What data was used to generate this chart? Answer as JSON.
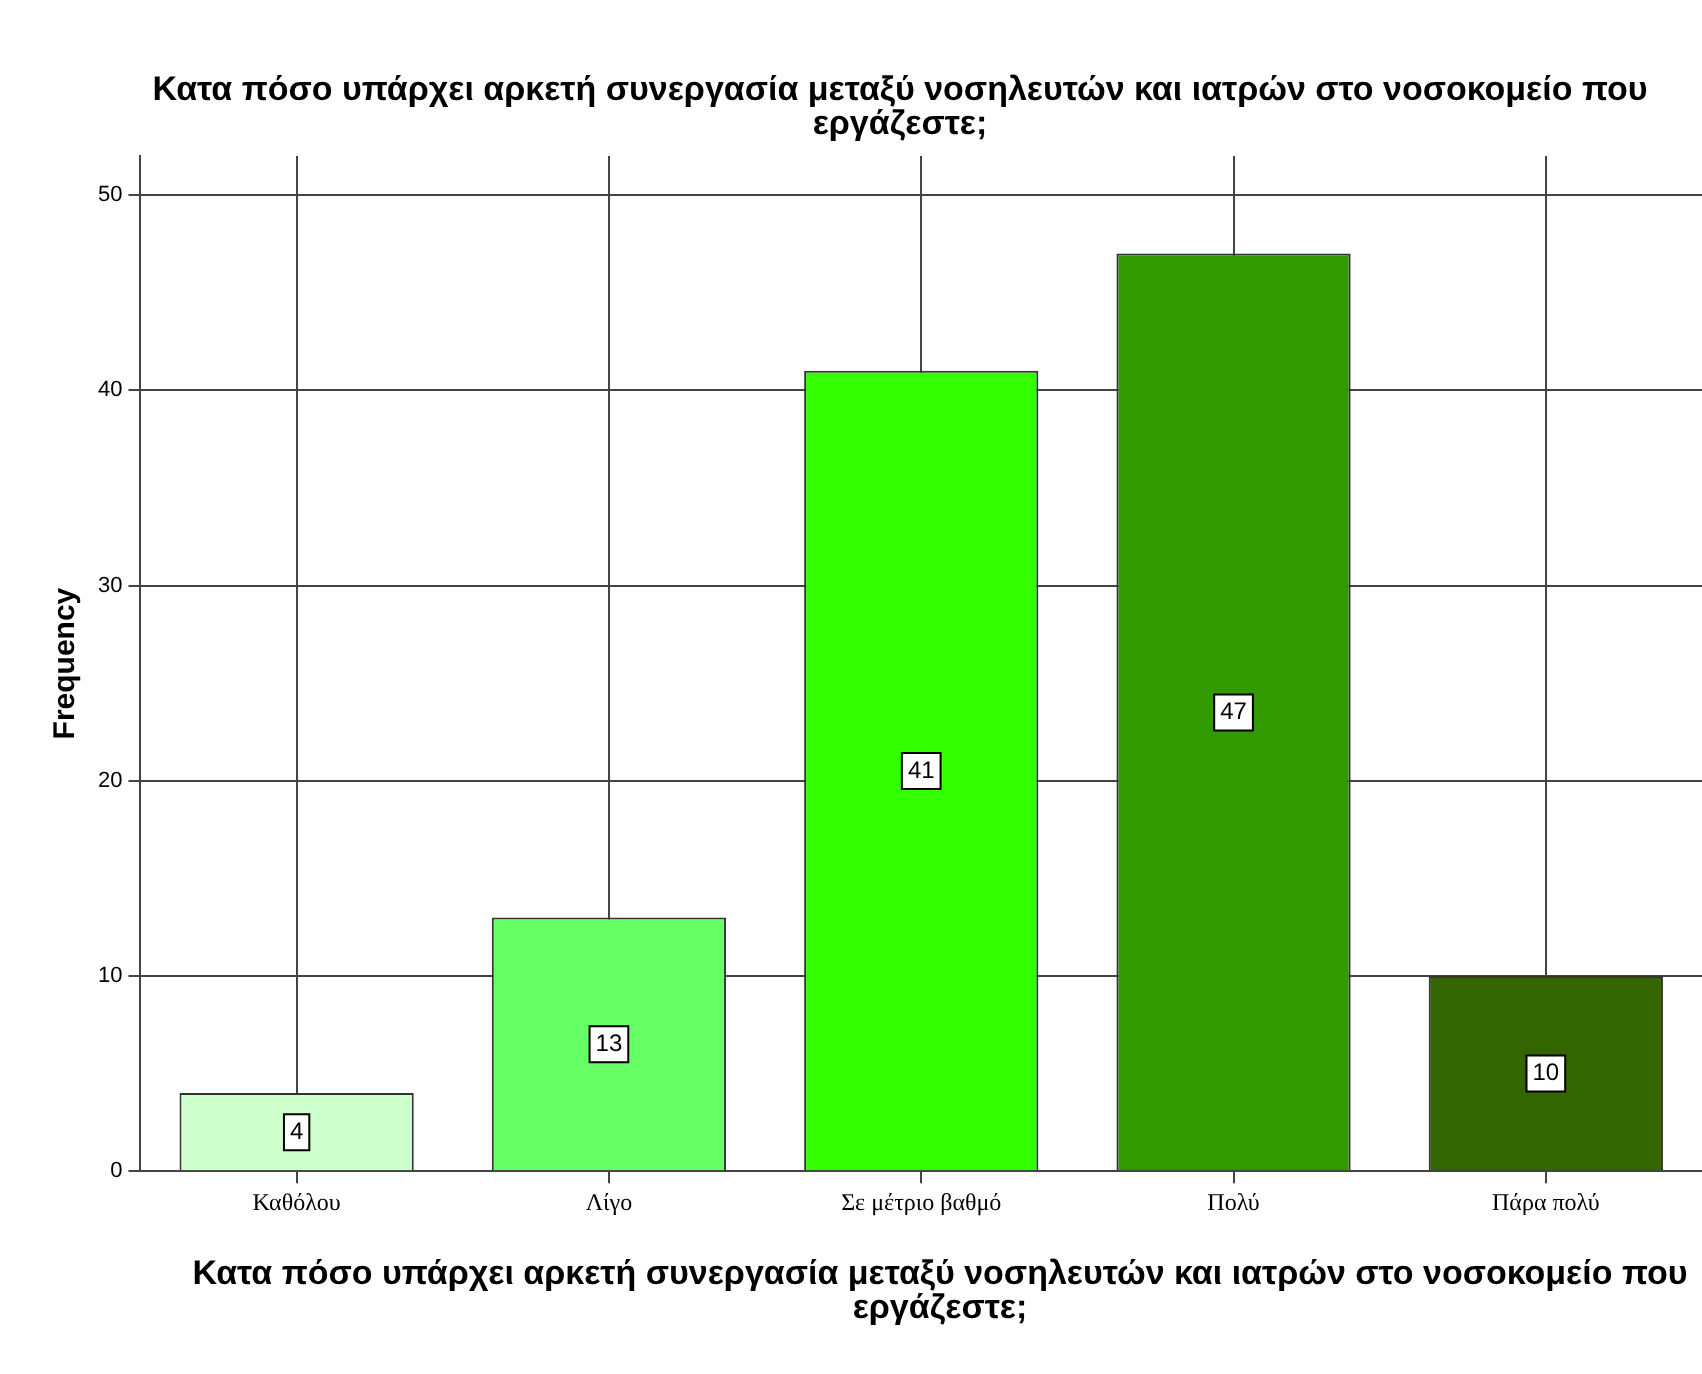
{
  "chart_data": {
    "type": "bar",
    "title": "Κατα πόσο υπάρχει αρκετή συνεργασία μεταξύ νοσηλευτών και ιατρών στο νοσοκομείο που εργάζεστε;",
    "xlabel": "Κατα πόσο υπάρχει αρκετή συνεργασία μεταξύ νοσηλευτών και ιατρών στο νοσοκομείο που εργάζεστε;",
    "ylabel": "Frequency",
    "categories": [
      "Καθόλου",
      "Λίγο",
      "Σε μέτριο βαθμό",
      "Πολύ",
      "Πάρα πολύ"
    ],
    "values": [
      4,
      13,
      41,
      47,
      10
    ],
    "colors": [
      "#ccffcc",
      "#66ff66",
      "#33ff00",
      "#339900",
      "#336600"
    ],
    "ylim": [
      0,
      52
    ],
    "yticks": [
      0,
      10,
      20,
      30,
      40,
      50
    ],
    "grid": true,
    "data_labels": true,
    "legend": false
  }
}
